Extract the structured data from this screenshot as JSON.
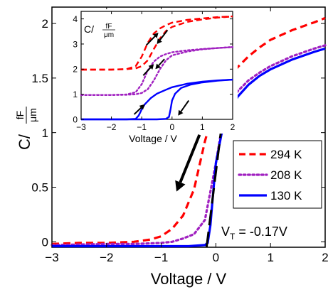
{
  "chart_data": [
    {
      "type": "line",
      "title": "",
      "xlabel": "Voltage / V",
      "ylabel": {
        "prefix": "C/",
        "unit_num": "fF",
        "unit_den": "μm"
      },
      "xlim": [
        -3,
        2
      ],
      "ylim": [
        -0.05,
        2.15
      ],
      "xticks": [
        -3,
        -2,
        -1,
        0,
        1,
        2
      ],
      "yticks": [
        0,
        0.5,
        1,
        1.5,
        2
      ],
      "xtick_labels": [
        "−3",
        "−2",
        "−1",
        "0",
        "1",
        "2"
      ],
      "ytick_labels": [
        "0",
        "0.5",
        "1",
        "1.5",
        "2"
      ],
      "grid": false,
      "legend_placement": "right-middle",
      "series": [
        {
          "name": "294 K",
          "color": "#ff0000",
          "style": "dashed",
          "x": [
            -3,
            -2.5,
            -2,
            -1.5,
            -1.2,
            -1.0,
            -0.8,
            -0.6,
            -0.4,
            -0.2,
            0,
            0.2,
            0.4,
            0.6,
            0.8,
            1.0,
            1.4,
            1.8,
            2.0
          ],
          "y": [
            -0.02,
            -0.01,
            -0.01,
            0.0,
            0.02,
            0.05,
            0.12,
            0.24,
            0.48,
            0.92,
            1.28,
            1.48,
            1.6,
            1.7,
            1.78,
            1.85,
            1.94,
            2.01,
            2.05
          ]
        },
        {
          "name": "208 K",
          "color": "#a020c0",
          "style": "dotted",
          "x": [
            -3,
            -2,
            -1.5,
            -1.0,
            -0.8,
            -0.6,
            -0.4,
            -0.2,
            0,
            0.1,
            0.2,
            0.4,
            0.6,
            0.8,
            1.0,
            1.4,
            1.8,
            2.0
          ],
          "y": [
            -0.03,
            -0.02,
            -0.02,
            -0.01,
            0.0,
            0.03,
            0.07,
            0.2,
            0.72,
            1.02,
            1.2,
            1.38,
            1.48,
            1.55,
            1.61,
            1.7,
            1.77,
            1.8
          ]
        },
        {
          "name": "130 K",
          "color": "#0000ff",
          "style": "solid",
          "x": [
            -3,
            -2,
            -1,
            -0.5,
            -0.2,
            -0.15,
            -0.1,
            -0.05,
            0,
            0.1,
            0.2,
            0.4,
            0.6,
            0.8,
            1.0,
            1.4,
            1.8,
            2.0
          ],
          "y": [
            -0.04,
            -0.04,
            -0.04,
            -0.04,
            -0.03,
            -0.01,
            0.15,
            0.45,
            0.72,
            0.98,
            1.15,
            1.33,
            1.44,
            1.52,
            1.58,
            1.67,
            1.74,
            1.77
          ]
        }
      ],
      "annotations": {
        "vt_label": {
          "prefix": "V",
          "sub": "T",
          "text": " = -0.17V"
        },
        "tangent_line": {
          "x": [
            -0.17,
            0.35
          ],
          "y": [
            -0.05,
            2.05
          ],
          "color": "#000000",
          "style": "long-dash"
        },
        "sweep_arrow": {
          "from": [
            -0.3,
            0.98
          ],
          "to": [
            -0.72,
            0.46
          ]
        }
      }
    },
    {
      "type": "line",
      "title": "",
      "xlabel": "Voltage / V",
      "ylabel": {
        "prefix": "C/",
        "unit_num": "fF",
        "unit_den": "μm"
      },
      "xlim": [
        -3,
        2
      ],
      "ylim": [
        0,
        4.3
      ],
      "xticks": [
        -3,
        -2,
        -1,
        0,
        1,
        2
      ],
      "yticks": [
        0,
        1,
        2,
        3,
        4
      ],
      "xtick_labels": [
        "−3",
        "−2",
        "−1",
        "0",
        "1",
        "2"
      ],
      "ytick_labels": [
        "0",
        "1",
        "2",
        "3",
        "4"
      ],
      "grid": false,
      "series": [
        {
          "name": "294 K up",
          "color": "#ff0000",
          "style": "dashed",
          "x": [
            -3,
            -2,
            -1.5,
            -1.2,
            -1.0,
            -0.8,
            -0.6,
            -0.4,
            -0.2,
            0,
            0.5,
            1,
            1.5,
            2
          ],
          "y": [
            1.98,
            1.98,
            2.0,
            2.12,
            2.5,
            3.05,
            3.42,
            3.62,
            3.75,
            3.85,
            3.96,
            4.02,
            4.07,
            4.1
          ]
        },
        {
          "name": "294 K down",
          "color": "#ff0000",
          "style": "dashed",
          "x": [
            -3,
            -2,
            -1.5,
            -1.2,
            -1.0,
            -0.8,
            -0.6,
            -0.4,
            -0.2,
            0,
            0.5,
            1,
            1.5,
            2
          ],
          "y": [
            1.98,
            1.98,
            2.0,
            2.03,
            2.12,
            2.35,
            2.8,
            3.22,
            3.52,
            3.68,
            3.88,
            3.98,
            4.05,
            4.1
          ]
        },
        {
          "name": "208 K up",
          "color": "#a020c0",
          "style": "dotted",
          "x": [
            -3,
            -2,
            -1.5,
            -1.2,
            -1.0,
            -0.8,
            -0.6,
            -0.4,
            -0.2,
            0,
            0.5,
            1,
            1.5,
            2
          ],
          "y": [
            0.97,
            0.97,
            0.99,
            1.08,
            1.4,
            1.95,
            2.3,
            2.5,
            2.6,
            2.67,
            2.75,
            2.8,
            2.84,
            2.88
          ]
        },
        {
          "name": "208 K down",
          "color": "#a020c0",
          "style": "dotted",
          "x": [
            -3,
            -2,
            -1.5,
            -1.2,
            -1.0,
            -0.8,
            -0.6,
            -0.4,
            -0.2,
            0,
            0.5,
            1,
            1.5,
            2
          ],
          "y": [
            0.97,
            0.97,
            0.98,
            1.0,
            1.05,
            1.2,
            1.55,
            2.0,
            2.35,
            2.55,
            2.7,
            2.79,
            2.84,
            2.88
          ]
        },
        {
          "name": "130 K up",
          "color": "#0000ff",
          "style": "solid",
          "x": [
            -3,
            -2,
            -1.5,
            -1.2,
            -1.1,
            -1.0,
            -0.9,
            -0.7,
            -0.5,
            -0.2,
            0,
            0.5,
            1,
            1.5,
            2
          ],
          "y": [
            0.0,
            0.0,
            0.0,
            0.02,
            0.15,
            0.4,
            0.6,
            0.85,
            1.02,
            1.18,
            1.28,
            1.42,
            1.5,
            1.55,
            1.58
          ]
        },
        {
          "name": "130 K down",
          "color": "#0000ff",
          "style": "solid",
          "x": [
            -3,
            -2,
            -1,
            -0.5,
            -0.2,
            -0.1,
            -0.05,
            0,
            0.1,
            0.3,
            0.6,
            1,
            1.5,
            2
          ],
          "y": [
            0.0,
            0.0,
            0.0,
            0.0,
            0.02,
            0.1,
            0.4,
            0.75,
            1.02,
            1.25,
            1.38,
            1.47,
            1.54,
            1.58
          ]
        }
      ],
      "arrows": [
        {
          "from": [
            -0.85,
            2.95
          ],
          "to": [
            -0.45,
            3.45
          ]
        },
        {
          "from": [
            -0.15,
            3.55
          ],
          "to": [
            -0.5,
            3.0
          ]
        },
        {
          "from": [
            -0.95,
            1.75
          ],
          "to": [
            -0.6,
            2.2
          ]
        },
        {
          "from": [
            -0.25,
            2.4
          ],
          "to": [
            -0.55,
            2.0
          ]
        },
        {
          "from": [
            -1.25,
            0.2
          ],
          "to": [
            -0.9,
            0.6
          ]
        },
        {
          "from": [
            0.55,
            0.75
          ],
          "to": [
            0.2,
            0.15
          ]
        }
      ]
    }
  ]
}
